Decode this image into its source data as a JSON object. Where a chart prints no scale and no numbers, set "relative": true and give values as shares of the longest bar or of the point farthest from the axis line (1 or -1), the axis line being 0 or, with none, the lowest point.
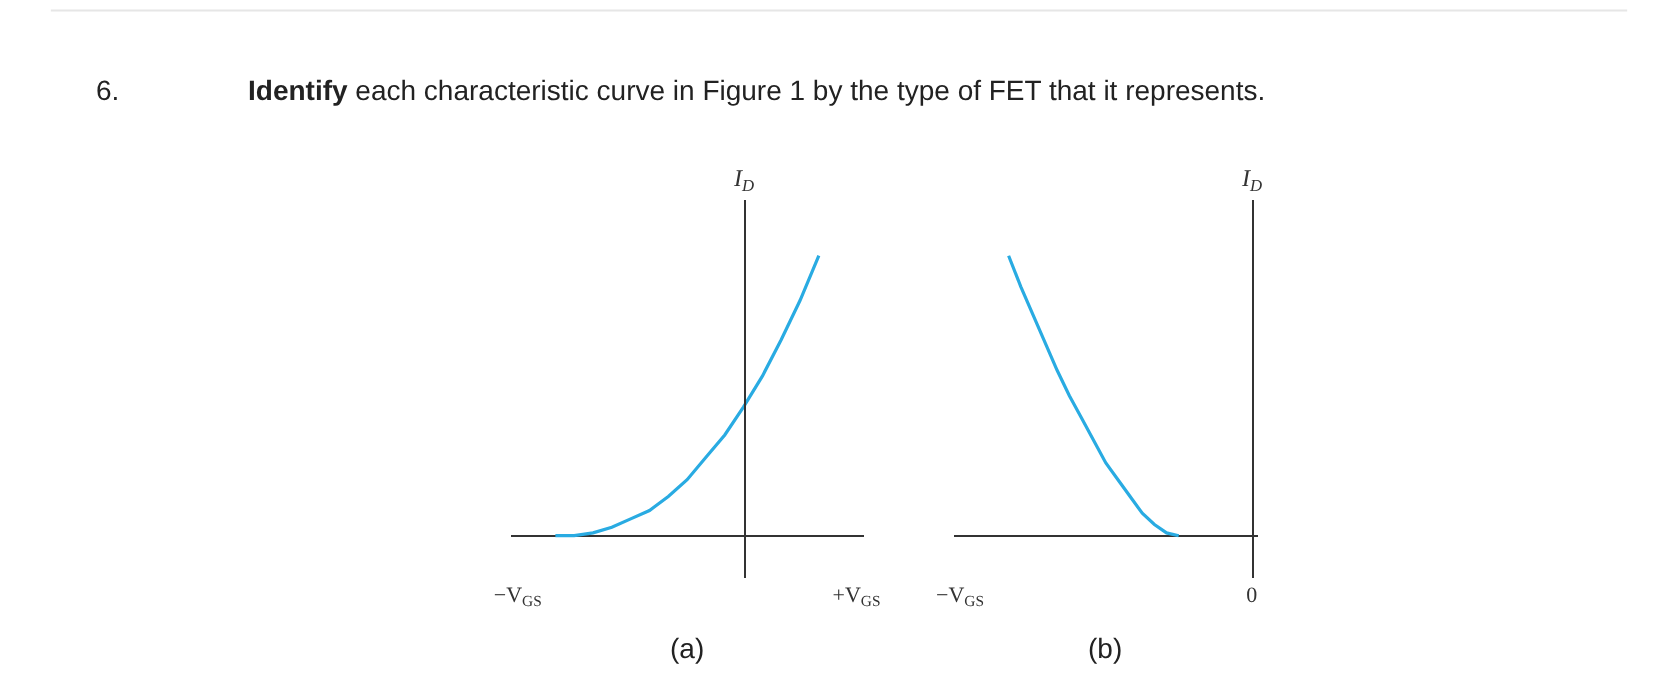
{
  "chart_data": [
    {
      "type": "line",
      "title": "Identify each characteristic curve in Figure 1 by the type of FET that it represents.",
      "annotations": [
        "6.",
        "(a)"
      ],
      "ylabel": "I$_{D}$",
      "relative": true,
      "marker": "none",
      "line_style": "solid",
      "categories": [
        "−V$_{GS}$",
        null,
        null,
        null,
        null,
        null,
        null,
        null,
        null,
        null,
        null,
        null,
        null,
        null,
        null,
        null,
        null,
        null,
        "+V$_{GS}$"
      ],
      "series": [
        {
          "color": "#29abe2",
          "values": [
            null,
            null,
            0,
            0,
            0.01,
            0.03,
            0.06,
            0.09,
            0.14,
            0.2,
            0.28,
            0.36,
            0.46,
            0.57,
            0.7,
            0.84,
            1,
            null,
            null
          ]
        }
      ]
    },
    {
      "type": "line",
      "annotations": [
        "(b)"
      ],
      "ylabel": "I$_{D}$",
      "relative": true,
      "marker": "none",
      "line_style": "solid",
      "categories": [
        "−V$_{GS}$",
        null,
        null,
        null,
        null,
        null,
        null,
        null,
        null,
        null,
        null,
        null,
        null,
        null,
        null,
        null,
        null,
        null,
        null,
        null,
        null,
        null,
        null,
        null,
        "0"
      ],
      "series": [
        {
          "color": "#29abe2",
          "values": [
            null,
            null,
            null,
            null,
            1,
            0.89,
            0.79,
            0.69,
            0.59,
            0.5,
            0.42,
            0.34,
            0.26,
            0.2,
            0.14,
            0.08,
            0.04,
            0.01,
            0,
            null,
            null,
            null,
            null,
            null,
            null
          ]
        }
      ]
    }
  ]
}
